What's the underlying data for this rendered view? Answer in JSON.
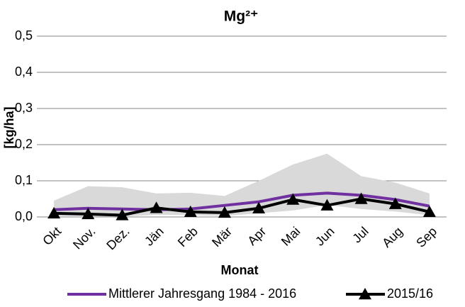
{
  "chart_data": {
    "type": "line",
    "title": "Mg²⁺",
    "x_label": "Monat",
    "y_label": "[kg/ha]",
    "categories": [
      "Okt",
      "Nov.",
      "Dez.",
      "Jän",
      "Feb",
      "Mär",
      "Apr",
      "Mai",
      "Jun",
      "Jul",
      "Aug",
      "Sep"
    ],
    "series": [
      {
        "name": "Mittlerer Jahresgang 1984 - 2016",
        "color": "#7030a0",
        "values": [
          0.02,
          0.024,
          0.022,
          0.02,
          0.022,
          0.032,
          0.042,
          0.06,
          0.066,
          0.06,
          0.048,
          0.03
        ]
      },
      {
        "name": "2015/16",
        "color": "#000000",
        "marker": "triangle",
        "values": [
          0.01,
          0.008,
          0.005,
          0.025,
          0.014,
          0.012,
          0.024,
          0.048,
          0.032,
          0.05,
          0.036,
          0.014
        ]
      }
    ],
    "band": {
      "color": "#d9d9d9",
      "upper": [
        0.045,
        0.085,
        0.082,
        0.065,
        0.067,
        0.058,
        0.1,
        0.145,
        0.175,
        0.113,
        0.095,
        0.065
      ],
      "lower": [
        0.003,
        0.002,
        0.001,
        0.006,
        0.005,
        0.003,
        0.01,
        0.018,
        0.033,
        0.022,
        0.015,
        0.005
      ]
    },
    "ylim": [
      0,
      0.5
    ],
    "yticks": [
      {
        "value": 0,
        "label": "0,0"
      },
      {
        "value": 0.1,
        "label": "0,1"
      },
      {
        "value": 0.2,
        "label": "0,2"
      },
      {
        "value": 0.3,
        "label": "0,3"
      },
      {
        "value": 0.4,
        "label": "0,4"
      },
      {
        "value": 0.5,
        "label": "0,5"
      }
    ],
    "grid": true,
    "legend": "bottom"
  }
}
